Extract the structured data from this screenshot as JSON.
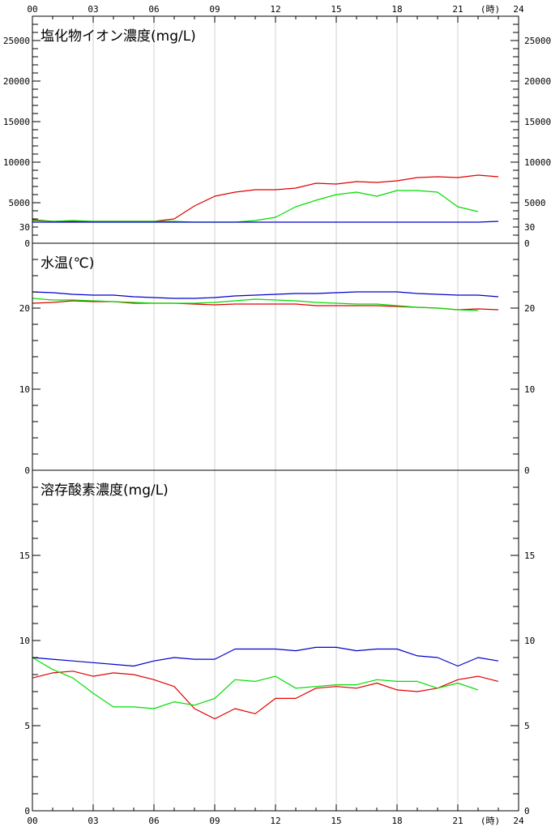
{
  "chart_data": {
    "type": "line",
    "x_axis": {
      "ticks": [
        "00",
        "03",
        "06",
        "09",
        "12",
        "15",
        "18",
        "21",
        "24"
      ],
      "unit_label": "(時)",
      "range": [
        0,
        24
      ]
    },
    "colors": {
      "red": "#e00000",
      "green": "#00dd00",
      "blue": "#0000cc",
      "gridline": "#d0d0d0"
    },
    "panels": [
      {
        "title": "塩化物イオン濃度(mg/L)",
        "ylim": [
          0,
          28000
        ],
        "tick_values": [
          0,
          5000,
          10000,
          15000,
          20000,
          25000
        ],
        "tick_labels": [
          "0",
          "5000",
          "10000",
          "15000",
          "20000",
          "25000"
        ],
        "series": [
          {
            "color": "red",
            "x": [
              0,
              1,
              2,
              3,
              4,
              5,
              6,
              7,
              8,
              9,
              10,
              11,
              12,
              13,
              14,
              15,
              16,
              17,
              18,
              19,
              20,
              21,
              22,
              23
            ],
            "values": [
              2900,
              2700,
              2700,
              2700,
              2700,
              2700,
              2700,
              3000,
              4600,
              5800,
              6300,
              6600,
              6600,
              6800,
              7400,
              7300,
              7600,
              7500,
              7700,
              8100,
              8200,
              8100,
              8400,
              8200
            ]
          },
          {
            "color": "green",
            "x": [
              0,
              1,
              2,
              3,
              4,
              5,
              6,
              7,
              8,
              9,
              10,
              11,
              12,
              13,
              14,
              15,
              16,
              17,
              18,
              19,
              20,
              21,
              22
            ],
            "values": [
              2800,
              2700,
              2800,
              2700,
              2700,
              2700,
              2700,
              2700,
              2600,
              2600,
              2600,
              2800,
              3200,
              4500,
              5300,
              6000,
              6300,
              5800,
              6500,
              6500,
              6300,
              4500,
              3900
            ]
          },
          {
            "color": "blue",
            "x": [
              0,
              1,
              2,
              3,
              4,
              5,
              6,
              7,
              8,
              9,
              10,
              11,
              12,
              13,
              14,
              15,
              16,
              17,
              18,
              19,
              20,
              21,
              22,
              23
            ],
            "values": [
              2600,
              2600,
              2600,
              2600,
              2600,
              2600,
              2600,
              2600,
              2600,
              2600,
              2600,
              2600,
              2600,
              2600,
              2600,
              2600,
              2600,
              2600,
              2600,
              2600,
              2600,
              2600,
              2600,
              2700
            ]
          }
        ]
      },
      {
        "title": "水温(℃)",
        "ylim": [
          0,
          28
        ],
        "tick_values": [
          0,
          10,
          20,
          30
        ],
        "tick_labels": [
          "0",
          "10",
          "20",
          "30"
        ],
        "series": [
          {
            "color": "red",
            "x": [
              0,
              1,
              2,
              3,
              4,
              5,
              6,
              7,
              8,
              9,
              10,
              11,
              12,
              13,
              14,
              15,
              16,
              17,
              18,
              19,
              20,
              21,
              22,
              23
            ],
            "values": [
              20.6,
              20.7,
              20.9,
              20.8,
              20.8,
              20.6,
              20.6,
              20.6,
              20.5,
              20.4,
              20.5,
              20.5,
              20.5,
              20.5,
              20.3,
              20.3,
              20.3,
              20.3,
              20.2,
              20.1,
              20.0,
              19.8,
              19.9,
              19.8
            ]
          },
          {
            "color": "green",
            "x": [
              0,
              1,
              2,
              3,
              4,
              5,
              6,
              7,
              8,
              9,
              10,
              11,
              12,
              13,
              14,
              15,
              16,
              17,
              18,
              19,
              20,
              21,
              22
            ],
            "values": [
              21.2,
              21.0,
              21.0,
              20.9,
              20.8,
              20.7,
              20.6,
              20.6,
              20.6,
              20.7,
              20.9,
              21.1,
              21.0,
              20.9,
              20.7,
              20.6,
              20.5,
              20.5,
              20.3,
              20.1,
              20.0,
              19.8,
              19.7
            ]
          },
          {
            "color": "blue",
            "x": [
              0,
              1,
              2,
              3,
              4,
              5,
              6,
              7,
              8,
              9,
              10,
              11,
              12,
              13,
              14,
              15,
              16,
              17,
              18,
              19,
              20,
              21,
              22,
              23
            ],
            "values": [
              22.0,
              21.9,
              21.7,
              21.6,
              21.6,
              21.4,
              21.3,
              21.2,
              21.2,
              21.3,
              21.5,
              21.6,
              21.7,
              21.8,
              21.8,
              21.9,
              22.0,
              22.0,
              22.0,
              21.8,
              21.7,
              21.6,
              21.6,
              21.4
            ]
          }
        ]
      },
      {
        "title": "溶存酸素濃度(mg/L)",
        "ylim": [
          0,
          20
        ],
        "tick_values": [
          0,
          5,
          10,
          15
        ],
        "tick_labels": [
          "0",
          "5",
          "10",
          "15"
        ],
        "series": [
          {
            "color": "red",
            "x": [
              0,
              1,
              2,
              3,
              4,
              5,
              6,
              7,
              8,
              9,
              10,
              11,
              12,
              13,
              14,
              15,
              16,
              17,
              18,
              19,
              20,
              21,
              22,
              23
            ],
            "values": [
              7.8,
              8.1,
              8.2,
              7.9,
              8.1,
              8.0,
              7.7,
              7.3,
              6.0,
              5.4,
              6.0,
              5.7,
              6.6,
              6.6,
              7.2,
              7.3,
              7.2,
              7.5,
              7.1,
              7.0,
              7.2,
              7.7,
              7.9,
              7.6
            ]
          },
          {
            "color": "green",
            "x": [
              0,
              1,
              2,
              3,
              4,
              5,
              6,
              7,
              8,
              9,
              10,
              11,
              12,
              13,
              14,
              15,
              16,
              17,
              18,
              19,
              20,
              21,
              22
            ],
            "values": [
              9.0,
              8.3,
              7.8,
              6.9,
              6.1,
              6.1,
              6.0,
              6.4,
              6.2,
              6.6,
              7.7,
              7.6,
              7.9,
              7.2,
              7.3,
              7.4,
              7.4,
              7.7,
              7.6,
              7.6,
              7.2,
              7.5,
              7.1
            ]
          },
          {
            "color": "blue",
            "x": [
              0,
              1,
              2,
              3,
              4,
              5,
              6,
              7,
              8,
              9,
              10,
              11,
              12,
              13,
              14,
              15,
              16,
              17,
              18,
              19,
              20,
              21,
              22,
              23
            ],
            "values": [
              9.0,
              8.9,
              8.8,
              8.7,
              8.6,
              8.5,
              8.8,
              9.0,
              8.9,
              8.9,
              9.5,
              9.5,
              9.5,
              9.4,
              9.6,
              9.6,
              9.4,
              9.5,
              9.5,
              9.1,
              9.0,
              8.5,
              9.0,
              8.8
            ]
          }
        ]
      }
    ]
  }
}
